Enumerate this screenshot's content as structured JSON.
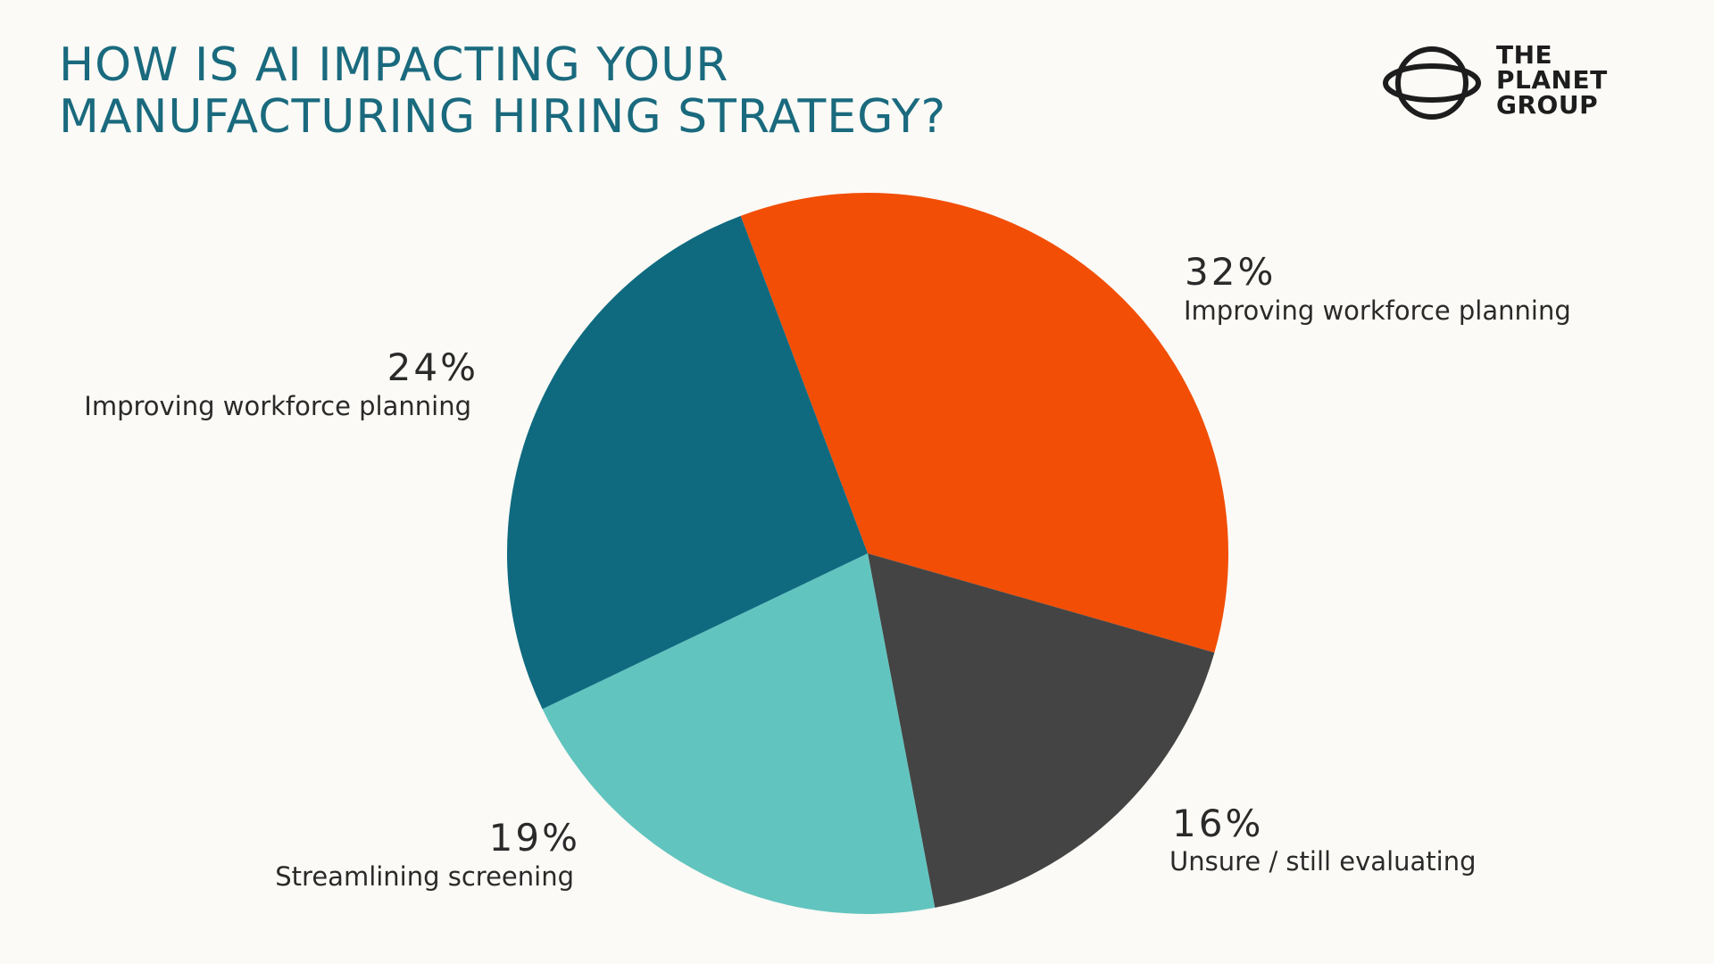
{
  "title": {
    "line1": "HOW IS AI IMPACTING YOUR",
    "line2": "MANUFACTURING HIRING STRATEGY?"
  },
  "brand": {
    "line1": "THE",
    "line2": "PLANET",
    "line3": "GROUP",
    "icon": "planet-ring-icon"
  },
  "colors": {
    "title": "#1a6a7e",
    "background": "#fbfaf6"
  },
  "chart_data": {
    "type": "pie",
    "title": "HOW IS AI IMPACTING YOUR MANUFACTURING HIRING STRATEGY?",
    "slices": [
      {
        "label": "Improving workforce planning",
        "value": 32,
        "display": "32%",
        "color": "#f24e06"
      },
      {
        "label": "Unsure / still evaluating",
        "value": 16,
        "display": "16%",
        "color": "#444444"
      },
      {
        "label": "Streamlining screening",
        "value": 19,
        "display": "19%",
        "color": "#62c4bf"
      },
      {
        "label": "Improving workforce planning",
        "value": 24,
        "display": "24%",
        "color": "#0f6a80"
      }
    ],
    "start": "top, clockwise",
    "legend": "none (labels beside slices)"
  }
}
